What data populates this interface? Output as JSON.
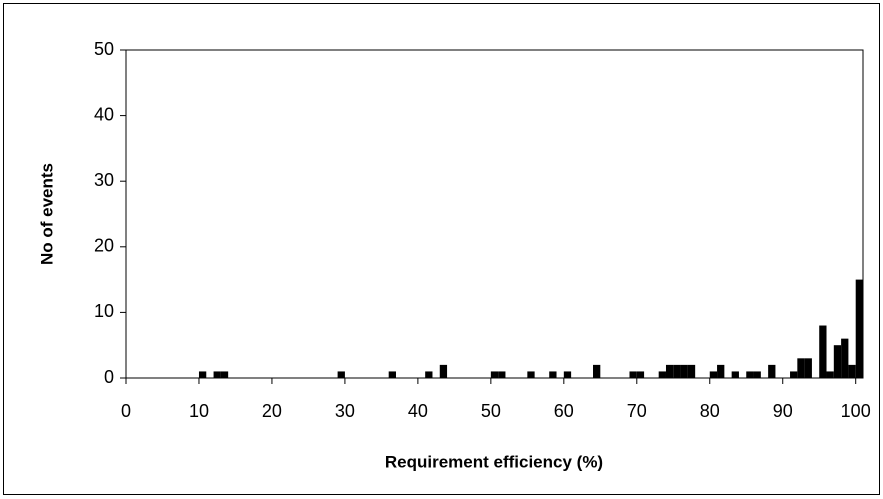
{
  "chart_data": {
    "type": "histogram",
    "x_label": "Requirement efficiency (%)",
    "y_label": "No of events",
    "bins": [
      10,
      11,
      12,
      13,
      14,
      15,
      16,
      17,
      18,
      19,
      20,
      21,
      22,
      23,
      24,
      25,
      26,
      27,
      28,
      29,
      30,
      31,
      32,
      33,
      34,
      35,
      36,
      37,
      38,
      39,
      40,
      41,
      42,
      43,
      44,
      45,
      46,
      47,
      48,
      49,
      50,
      51,
      52,
      53,
      54,
      55,
      56,
      57,
      58,
      59,
      60,
      61,
      62,
      63,
      64,
      65,
      66,
      67,
      68,
      69,
      70,
      71,
      72,
      73,
      74,
      75,
      76,
      77,
      78,
      79,
      80,
      81,
      82,
      83,
      84,
      85,
      86,
      87,
      88,
      89,
      90,
      91,
      92,
      93,
      94,
      95,
      96,
      97,
      98,
      99,
      100,
      101
    ],
    "values": [
      1,
      0,
      1,
      1,
      0,
      0,
      0,
      0,
      0,
      0,
      0,
      0,
      0,
      0,
      0,
      0,
      0,
      0,
      0,
      1,
      0,
      0,
      0,
      0,
      0,
      0,
      1,
      0,
      0,
      0,
      0,
      1,
      0,
      2,
      0,
      0,
      0,
      0,
      0,
      0,
      1,
      1,
      0,
      0,
      0,
      1,
      0,
      0,
      1,
      0,
      1,
      0,
      0,
      0,
      2,
      0,
      0,
      0,
      0,
      1,
      1,
      0,
      0,
      1,
      2,
      2,
      2,
      2,
      0,
      0,
      1,
      2,
      0,
      1,
      0,
      1,
      1,
      0,
      2,
      0,
      0,
      1,
      3,
      3,
      0,
      8,
      1,
      5,
      6,
      2,
      15
    ],
    "color": "#000000",
    "xlim": [
      0,
      101
    ],
    "ylim": [
      0,
      50
    ],
    "xticks": [
      0,
      10,
      20,
      30,
      40,
      50,
      60,
      70,
      80,
      90,
      100
    ],
    "yticks": [
      0,
      10,
      20,
      30,
      40,
      50
    ]
  }
}
